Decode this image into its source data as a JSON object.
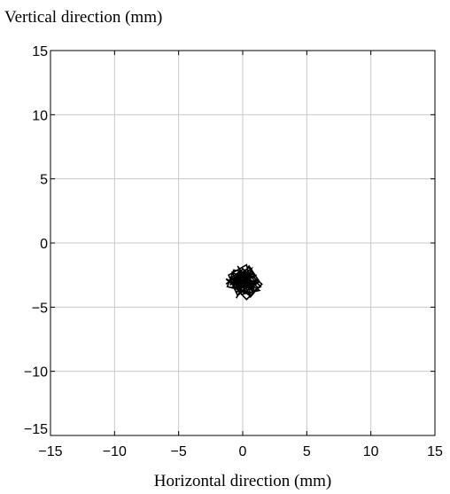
{
  "chart_data": {
    "type": "line",
    "title": "",
    "xlabel": "Horizontal direction (mm)",
    "ylabel": "Vertical direction (mm)",
    "xlim": [
      -15,
      15
    ],
    "ylim": [
      -15,
      15
    ],
    "xticks": [
      -15,
      -10,
      -5,
      0,
      5,
      10,
      15
    ],
    "yticks": [
      -15,
      -10,
      -5,
      0,
      5,
      10,
      15
    ],
    "xtick_labels": [
      "−15",
      "−10",
      "−5",
      "0",
      "5",
      "10",
      "15"
    ],
    "ytick_labels": [
      "−15",
      "−10",
      "−5",
      "0",
      "5",
      "10",
      "15"
    ],
    "grid": true,
    "series": [
      {
        "color": "#000000",
        "x": [
          0.0,
          0.4,
          -0.3,
          0.9,
          0.2,
          -0.6,
          0.5,
          1.3,
          0.1,
          -0.9,
          -0.2,
          0.7,
          1.0,
          -0.4,
          -1.1,
          0.3,
          0.8,
          -0.7,
          0.0,
          1.2,
          0.6,
          -0.5,
          -1.0,
          0.2,
          0.9,
          -0.1,
          -0.8,
          0.4,
          1.4,
          0.0,
          -0.6,
          0.7,
          -0.3,
          -1.3,
          0.5,
          1.1,
          -0.2,
          -0.9,
          0.3,
          0.6,
          -0.5,
          0.1,
          1.0,
          -0.7,
          -1.2,
          0.8,
          0.2,
          -0.4,
          0.6,
          1.3,
          -0.1,
          -0.8,
          0.4,
          0.9,
          -0.6,
          -0.2,
          0.7,
          0.1,
          -1.0,
          0.3,
          1.5,
          0.5,
          -0.3,
          -1.3,
          0.0,
          0.8,
          -0.5,
          0.2,
          1.1,
          -0.9,
          -0.1,
          0.6,
          0.3,
          -0.7,
          0.9,
          -0.4,
          0.1
        ],
        "y": [
          -2.6,
          -3.1,
          -2.0,
          -3.6,
          -2.4,
          -3.3,
          -1.8,
          -3.0,
          -3.9,
          -2.7,
          -2.2,
          -3.4,
          -2.9,
          -4.1,
          -2.5,
          -1.7,
          -3.7,
          -3.0,
          -2.3,
          -3.5,
          -4.2,
          -2.8,
          -3.3,
          -2.1,
          -3.8,
          -2.6,
          -3.1,
          -4.0,
          -3.4,
          -2.0,
          -2.9,
          -3.6,
          -2.4,
          -3.2,
          -1.9,
          -3.0,
          -3.8,
          -2.7,
          -3.5,
          -2.2,
          -4.3,
          -3.1,
          -2.5,
          -2.1,
          -3.4,
          -3.9,
          -2.8,
          -1.8,
          -3.2,
          -3.7,
          -4.0,
          -2.3,
          -2.9,
          -3.3,
          -3.6,
          -2.6,
          -2.0,
          -3.5,
          -3.0,
          -4.4,
          -3.2,
          -2.4,
          -3.7,
          -2.8,
          -3.4,
          -2.2,
          -3.9,
          -2.7,
          -3.1,
          -3.5,
          -2.9,
          -4.1,
          -2.3,
          -3.3,
          -2.6,
          -3.0,
          -2.8
        ]
      }
    ]
  }
}
